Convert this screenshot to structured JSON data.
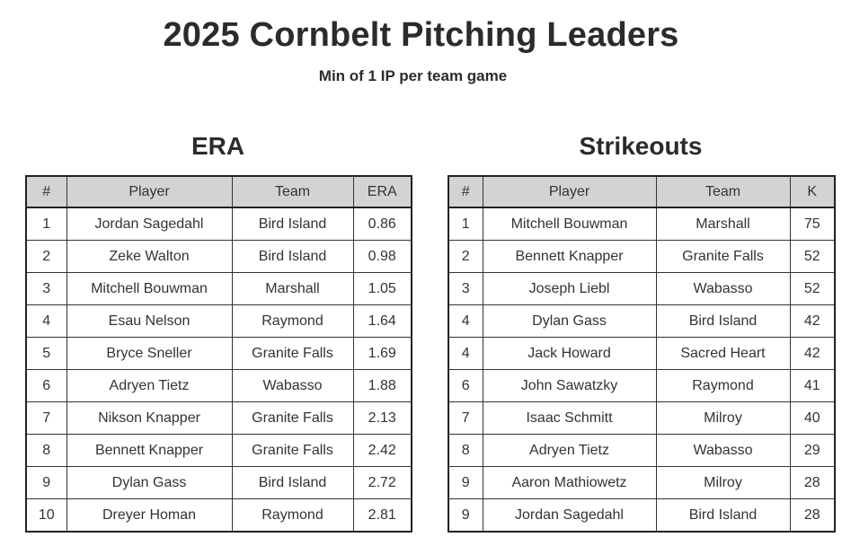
{
  "header": {
    "title": "2025 Cornbelt Pitching Leaders",
    "subtitle": "Min of 1 IP per team game"
  },
  "era_section": {
    "title": "ERA",
    "columns": [
      "#",
      "Player",
      "Team",
      "ERA"
    ],
    "rows": [
      [
        "1",
        "Jordan Sagedahl",
        "Bird Island",
        "0.86"
      ],
      [
        "2",
        "Zeke Walton",
        "Bird Island",
        "0.98"
      ],
      [
        "3",
        "Mitchell Bouwman",
        "Marshall",
        "1.05"
      ],
      [
        "4",
        "Esau Nelson",
        "Raymond",
        "1.64"
      ],
      [
        "5",
        "Bryce Sneller",
        "Granite Falls",
        "1.69"
      ],
      [
        "6",
        "Adryen Tietz",
        "Wabasso",
        "1.88"
      ],
      [
        "7",
        "Nikson Knapper",
        "Granite Falls",
        "2.13"
      ],
      [
        "8",
        "Bennett Knapper",
        "Granite Falls",
        "2.42"
      ],
      [
        "9",
        "Dylan Gass",
        "Bird Island",
        "2.72"
      ],
      [
        "10",
        "Dreyer Homan",
        "Raymond",
        "2.81"
      ]
    ]
  },
  "strikeouts_section": {
    "title": "Strikeouts",
    "columns": [
      "#",
      "Player",
      "Team",
      "K"
    ],
    "rows": [
      [
        "1",
        "Mitchell Bouwman",
        "Marshall",
        "75"
      ],
      [
        "2",
        "Bennett Knapper",
        "Granite Falls",
        "52"
      ],
      [
        "3",
        "Joseph Liebl",
        "Wabasso",
        "52"
      ],
      [
        "4",
        "Dylan Gass",
        "Bird Island",
        "42"
      ],
      [
        "4",
        "Jack Howard",
        "Sacred Heart",
        "42"
      ],
      [
        "6",
        "John Sawatzky",
        "Raymond",
        "41"
      ],
      [
        "7",
        "Isaac Schmitt",
        "Milroy",
        "40"
      ],
      [
        "8",
        "Adryen Tietz",
        "Wabasso",
        "29"
      ],
      [
        "9",
        "Aaron Mathiowetz",
        "Milroy",
        "28"
      ],
      [
        "9",
        "Jordan Sagedahl",
        "Bird Island",
        "28"
      ]
    ]
  },
  "colors": {
    "header_bg": "#d3d3d3",
    "text": "#2b2b2b",
    "border": "#222222"
  }
}
